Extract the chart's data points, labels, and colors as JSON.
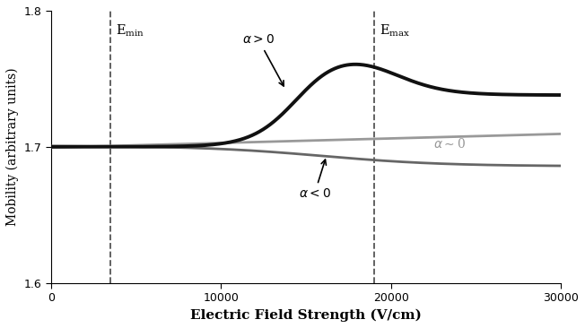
{
  "xlabel": "Electric Field Strength (V/cm)",
  "ylabel": "Mobility (arbitrary units)",
  "xlim": [
    0,
    30000
  ],
  "ylim": [
    1.6,
    1.8
  ],
  "yticks": [
    1.6,
    1.7,
    1.8
  ],
  "xticks": [
    0,
    10000,
    20000,
    30000
  ],
  "e_min_x": 3500,
  "e_max_x": 19000,
  "alpha_pos_color": "#111111",
  "alpha_zero_color": "#999999",
  "alpha_neg_color": "#666666",
  "background_color": "#ffffff",
  "dashed_line_color": "#555555"
}
